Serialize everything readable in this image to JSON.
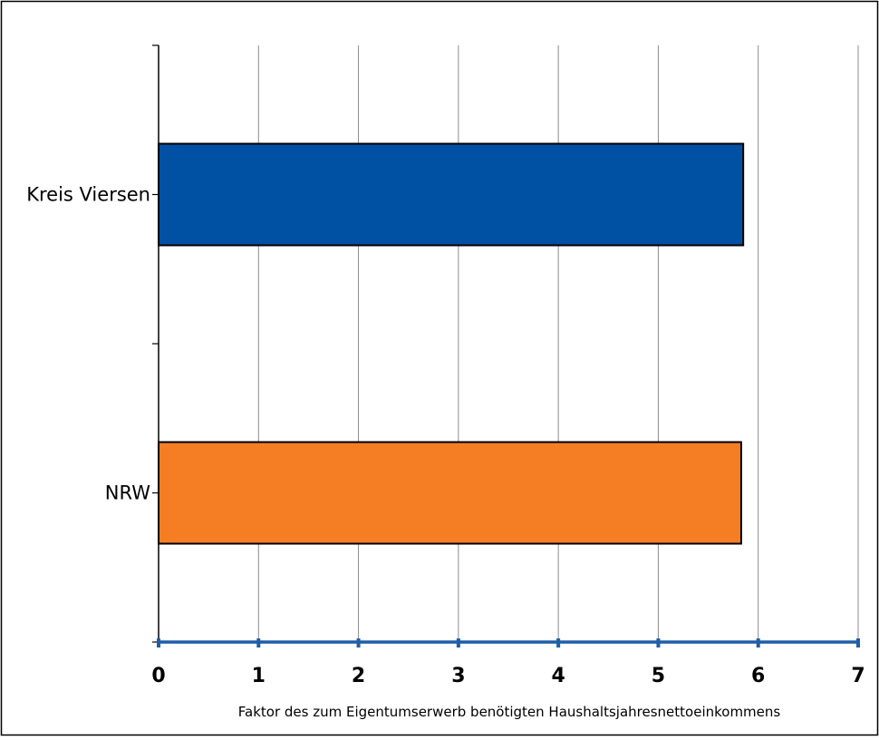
{
  "chart_data": {
    "type": "bar",
    "orientation": "horizontal",
    "categories": [
      "Kreis Viersen",
      "NRW"
    ],
    "values": [
      5.85,
      5.83
    ],
    "bar_colors": [
      "#0050a4",
      "#f57e25"
    ],
    "xlabel": "Faktor des zum Eigentumserwerb benötigten Haushaltsjahresnettoeinkommens",
    "ylabel": "",
    "title": "",
    "xlim": [
      0,
      7
    ],
    "xticks": [
      "0",
      "1",
      "2",
      "3",
      "4",
      "5",
      "6",
      "7"
    ],
    "grid": true,
    "legend": "none",
    "axis_color": "#1f5fa8"
  }
}
